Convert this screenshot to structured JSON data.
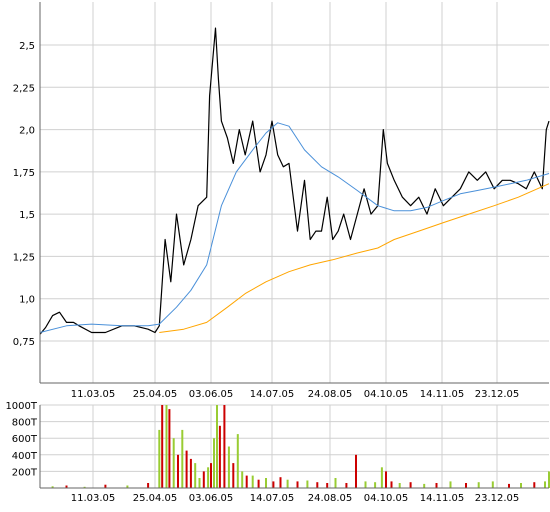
{
  "colors": {
    "price": "#000000",
    "ma_short": "#4a90d9",
    "ma_long": "#ffa500",
    "volume_up": "#99cc33",
    "volume_down": "#cc0000",
    "grid": "#d0d0d0",
    "axis": "#666666"
  },
  "chart_data": [
    {
      "type": "line",
      "title": "",
      "xlabel": "",
      "ylabel": "",
      "grid": true,
      "legend": "none",
      "x_range": [
        "2005-02-01",
        "2006-01-31"
      ],
      "ylim": [
        0.55,
        2.65
      ],
      "yticks": [
        0.75,
        1.0,
        1.25,
        1.5,
        1.75,
        2.0,
        2.25,
        2.5
      ],
      "ytick_labels": [
        "0,75",
        "1,0",
        "1,25",
        "1,5",
        "1,75",
        "2,0",
        "2,25",
        "2,5"
      ],
      "xtick_labels": [
        "11.03.05",
        "25.04.05",
        "03.06.05",
        "14.07.05",
        "24.08.05",
        "04.10.05",
        "14.11.05",
        "23.12.05"
      ],
      "series": [
        {
          "key": "price",
          "x": [
            "2005-02-01",
            "2005-02-05",
            "2005-02-10",
            "2005-02-15",
            "2005-02-20",
            "2005-02-25",
            "2005-03-01",
            "2005-03-10",
            "2005-03-20",
            "2005-04-01",
            "2005-04-10",
            "2005-04-20",
            "2005-04-25",
            "2005-04-28",
            "2005-05-02",
            "2005-05-06",
            "2005-05-10",
            "2005-05-15",
            "2005-05-20",
            "2005-05-25",
            "2005-05-31",
            "2005-06-02",
            "2005-06-06",
            "2005-06-08",
            "2005-06-10",
            "2005-06-14",
            "2005-06-18",
            "2005-06-22",
            "2005-06-26",
            "2005-07-01",
            "2005-07-06",
            "2005-07-10",
            "2005-07-14",
            "2005-07-18",
            "2005-07-22",
            "2005-07-26",
            "2005-08-01",
            "2005-08-06",
            "2005-08-10",
            "2005-08-14",
            "2005-08-18",
            "2005-08-22",
            "2005-08-26",
            "2005-08-30",
            "2005-09-03",
            "2005-09-08",
            "2005-09-13",
            "2005-09-18",
            "2005-09-23",
            "2005-09-28",
            "2005-10-02",
            "2005-10-05",
            "2005-10-10",
            "2005-10-16",
            "2005-10-22",
            "2005-10-28",
            "2005-11-03",
            "2005-11-09",
            "2005-11-15",
            "2005-11-21",
            "2005-11-27",
            "2005-12-03",
            "2005-12-09",
            "2005-12-15",
            "2005-12-21",
            "2005-12-27",
            "2006-01-02",
            "2006-01-08",
            "2006-01-14",
            "2006-01-20",
            "2006-01-26",
            "2006-01-29",
            "2006-01-31"
          ],
          "y": [
            0.79,
            0.83,
            0.9,
            0.92,
            0.86,
            0.86,
            0.84,
            0.8,
            0.8,
            0.84,
            0.84,
            0.82,
            0.8,
            0.84,
            1.35,
            1.1,
            1.5,
            1.2,
            1.35,
            1.55,
            1.6,
            2.2,
            2.6,
            2.3,
            2.05,
            1.95,
            1.8,
            2.0,
            1.85,
            2.05,
            1.75,
            1.85,
            2.05,
            1.85,
            1.78,
            1.8,
            1.4,
            1.7,
            1.35,
            1.4,
            1.4,
            1.6,
            1.35,
            1.4,
            1.5,
            1.35,
            1.5,
            1.65,
            1.5,
            1.55,
            2.0,
            1.8,
            1.7,
            1.6,
            1.55,
            1.6,
            1.5,
            1.65,
            1.55,
            1.6,
            1.65,
            1.75,
            1.7,
            1.75,
            1.65,
            1.7,
            1.7,
            1.68,
            1.65,
            1.75,
            1.65,
            2.0,
            2.05
          ]
        },
        {
          "key": "ma_short",
          "x": [
            "2005-02-01",
            "2005-02-20",
            "2005-03-10",
            "2005-04-01",
            "2005-04-20",
            "2005-04-28",
            "2005-05-10",
            "2005-05-20",
            "2005-05-31",
            "2005-06-10",
            "2005-06-20",
            "2005-07-01",
            "2005-07-10",
            "2005-07-18",
            "2005-07-26",
            "2005-08-06",
            "2005-08-18",
            "2005-08-30",
            "2005-09-13",
            "2005-09-28",
            "2005-10-10",
            "2005-10-22",
            "2005-11-03",
            "2005-11-15",
            "2005-11-27",
            "2005-12-09",
            "2005-12-21",
            "2006-01-02",
            "2006-01-14",
            "2006-01-31"
          ],
          "y": [
            0.8,
            0.84,
            0.85,
            0.84,
            0.84,
            0.85,
            0.95,
            1.05,
            1.2,
            1.55,
            1.75,
            1.88,
            1.98,
            2.04,
            2.02,
            1.88,
            1.78,
            1.72,
            1.64,
            1.55,
            1.52,
            1.52,
            1.54,
            1.58,
            1.62,
            1.64,
            1.66,
            1.68,
            1.7,
            1.74
          ]
        },
        {
          "key": "ma_long",
          "x": [
            "2005-04-28",
            "2005-05-15",
            "2005-05-31",
            "2005-06-14",
            "2005-06-26",
            "2005-07-10",
            "2005-07-26",
            "2005-08-10",
            "2005-08-26",
            "2005-09-13",
            "2005-09-28",
            "2005-10-10",
            "2005-10-28",
            "2005-11-15",
            "2005-12-03",
            "2005-12-21",
            "2006-01-08",
            "2006-01-31"
          ],
          "y": [
            0.8,
            0.82,
            0.86,
            0.95,
            1.03,
            1.1,
            1.16,
            1.2,
            1.23,
            1.27,
            1.3,
            1.35,
            1.4,
            1.45,
            1.5,
            1.55,
            1.6,
            1.68
          ]
        }
      ]
    },
    {
      "type": "bar",
      "title": "",
      "xlabel": "",
      "ylabel": "",
      "grid": true,
      "ylim": [
        0,
        1000
      ],
      "yticks": [
        200,
        400,
        600,
        800,
        1000
      ],
      "ytick_labels": [
        "200T",
        "400T",
        "600T",
        "800T",
        "1000T"
      ],
      "xtick_labels": [
        "11.03.05",
        "25.04.05",
        "03.06.05",
        "14.07.05",
        "24.08.05",
        "04.10.05",
        "14.11.05",
        "23.12.05"
      ],
      "x": [
        "2005-02-10",
        "2005-02-20",
        "2005-03-05",
        "2005-03-20",
        "2005-04-05",
        "2005-04-20",
        "2005-04-28",
        "2005-04-30",
        "2005-05-03",
        "2005-05-05",
        "2005-05-08",
        "2005-05-11",
        "2005-05-14",
        "2005-05-17",
        "2005-05-20",
        "2005-05-23",
        "2005-05-26",
        "2005-05-29",
        "2005-06-01",
        "2005-06-03",
        "2005-06-05",
        "2005-06-07",
        "2005-06-09",
        "2005-06-12",
        "2005-06-15",
        "2005-06-18",
        "2005-06-21",
        "2005-06-24",
        "2005-06-27",
        "2005-07-01",
        "2005-07-05",
        "2005-07-10",
        "2005-07-15",
        "2005-07-20",
        "2005-07-25",
        "2005-08-01",
        "2005-08-08",
        "2005-08-15",
        "2005-08-22",
        "2005-08-28",
        "2005-09-05",
        "2005-09-12",
        "2005-09-19",
        "2005-09-26",
        "2005-10-01",
        "2005-10-04",
        "2005-10-08",
        "2005-10-14",
        "2005-10-22",
        "2005-11-01",
        "2005-11-10",
        "2005-11-20",
        "2005-12-01",
        "2005-12-10",
        "2005-12-20",
        "2006-01-01",
        "2006-01-10",
        "2006-01-20",
        "2006-01-28",
        "2006-01-31"
      ],
      "values": [
        20,
        30,
        15,
        40,
        30,
        60,
        700,
        1000,
        1000,
        950,
        600,
        400,
        700,
        450,
        350,
        300,
        120,
        200,
        250,
        300,
        600,
        1000,
        750,
        1000,
        500,
        300,
        650,
        200,
        150,
        150,
        100,
        120,
        80,
        130,
        100,
        80,
        90,
        70,
        60,
        120,
        60,
        400,
        80,
        70,
        250,
        200,
        80,
        60,
        70,
        50,
        60,
        80,
        60,
        70,
        80,
        50,
        60,
        70,
        80,
        200
      ],
      "direction": [
        "up",
        "down",
        "up",
        "down",
        "up",
        "down",
        "up",
        "down",
        "up",
        "down",
        "up",
        "down",
        "up",
        "down",
        "down",
        "up",
        "up",
        "down",
        "up",
        "down",
        "up",
        "up",
        "down",
        "down",
        "up",
        "down",
        "up",
        "up",
        "down",
        "up",
        "down",
        "up",
        "down",
        "down",
        "up",
        "down",
        "up",
        "down",
        "down",
        "up",
        "down",
        "down",
        "up",
        "up",
        "up",
        "down",
        "down",
        "up",
        "down",
        "up",
        "down",
        "up",
        "down",
        "up",
        "up",
        "down",
        "up",
        "down",
        "up",
        "up"
      ]
    }
  ]
}
